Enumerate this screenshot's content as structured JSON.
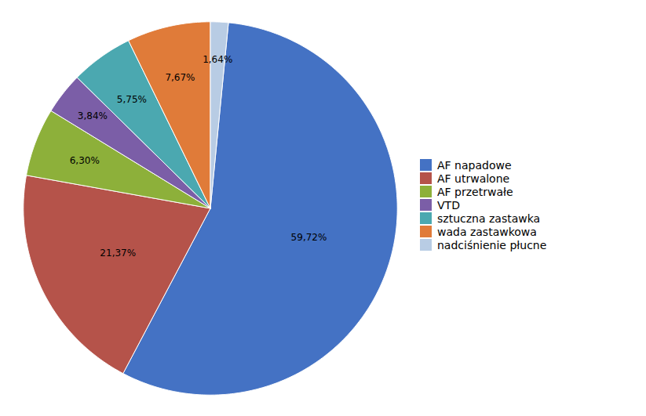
{
  "chart_data": {
    "type": "pie",
    "categories": [
      "AF napadowe",
      "AF utrwalone",
      "AF przetrwałe",
      "VTD",
      "sztuczna zastawka",
      "wada zastawkowa",
      "nadciśnienie płucne"
    ],
    "values": [
      59.72,
      21.37,
      6.3,
      3.84,
      5.75,
      7.67,
      1.64
    ],
    "value_labels": [
      "59,72%",
      "21,37%",
      "6,30%",
      "3,84%",
      "5,75%",
      "7,67%",
      "1,64%"
    ],
    "colors": [
      "#4472C4",
      "#B5534A",
      "#8DB03A",
      "#7B5EA7",
      "#4BA8B0",
      "#E07B39",
      "#B8CCE4"
    ],
    "data_labels": true,
    "legend": "right"
  }
}
